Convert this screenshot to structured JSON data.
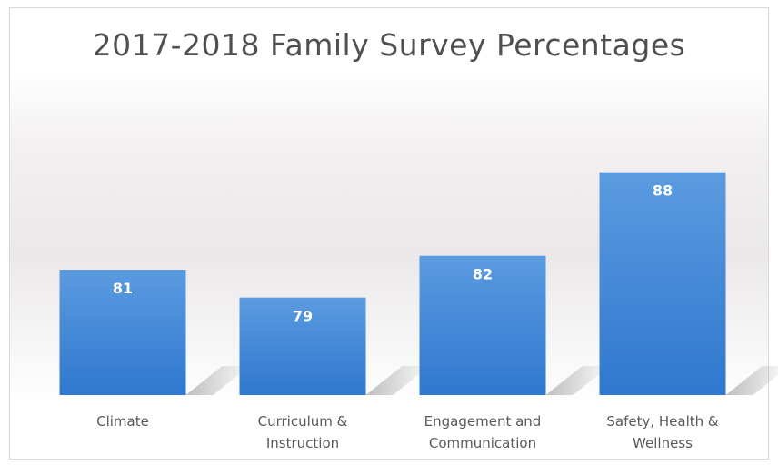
{
  "chart_data": {
    "type": "bar",
    "title": "2017-2018 Family Survey Percentages",
    "categories": [
      [
        "Climate"
      ],
      [
        "Curriculum &",
        "Instruction"
      ],
      [
        "Engagement and",
        "Communication"
      ],
      [
        "Safety, Health &",
        "Wellness"
      ]
    ],
    "values": [
      81,
      79,
      82,
      88
    ],
    "data_labels": true,
    "gridlines": false,
    "legend": "none",
    "bar_color": "#3d85d6"
  }
}
